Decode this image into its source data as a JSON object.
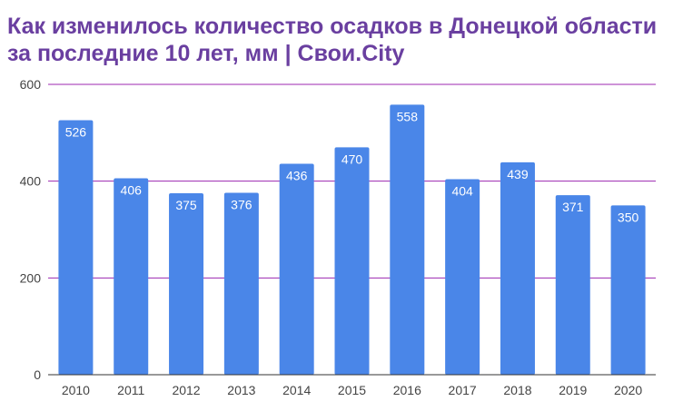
{
  "colors": {
    "title": "#6a3fa0",
    "bar": "#4a86e8",
    "grid": "#9c27b0",
    "axis": "#333333",
    "tick_text": "#444444",
    "data_label": "#ffffff"
  },
  "chart_data": {
    "type": "bar",
    "title": "Как изменилось количество осадков в Донецкой области за последние 10 лет, мм | Свои.City",
    "xlabel": "",
    "ylabel": "",
    "categories": [
      "2010",
      "2011",
      "2012",
      "2013",
      "2014",
      "2015",
      "2016",
      "2017",
      "2018",
      "2019",
      "2020"
    ],
    "values": [
      526,
      406,
      375,
      376,
      436,
      470,
      558,
      404,
      439,
      371,
      350
    ],
    "ylim": [
      0,
      600
    ],
    "yticks": [
      0,
      200,
      400,
      600
    ],
    "grid": true,
    "legend": "none"
  }
}
